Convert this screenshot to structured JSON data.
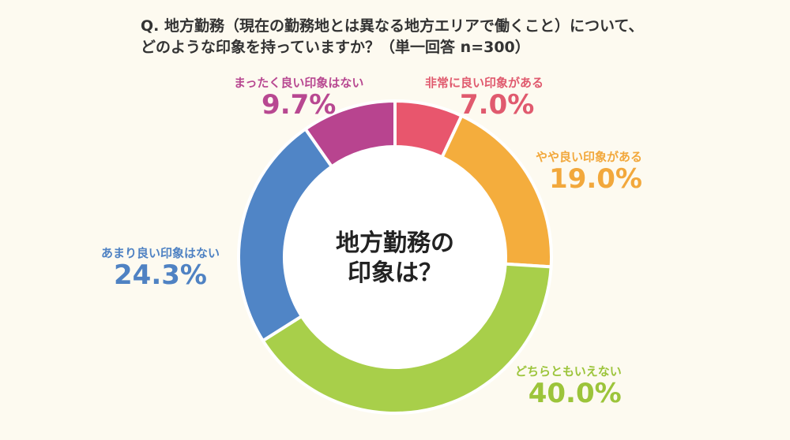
{
  "title": {
    "line1": "Q. 地方勤務（現在の勤務地とは異なる地方エリアで働くこと）について、",
    "line2": "どのような印象を持っていますか？（単一回答 n=300）"
  },
  "center_label": {
    "line1": "地方勤務の",
    "line2": "印象は？"
  },
  "chart_data": {
    "type": "pie",
    "title": "Q. 地方勤務（現在の勤務地とは異なる地方エリアで働くこと）について、どのような印象を持っていますか？（単一回答 n=300）",
    "donut": true,
    "categories": [
      "非常に良い印象がある",
      "やや良い印象がある",
      "どちらともいえない",
      "あまり良い印象はない",
      "まったく良い印象はない"
    ],
    "values": [
      7.0,
      19.0,
      40.0,
      24.3,
      9.7
    ],
    "value_labels": [
      "7.0%",
      "19.0%",
      "40.0%",
      "24.3%",
      "9.7%"
    ],
    "colors": [
      "#e8566d",
      "#f4ad3d",
      "#a8cf4a",
      "#5085c6",
      "#b8448f"
    ],
    "background": "#fdfaf0",
    "n": 300
  }
}
